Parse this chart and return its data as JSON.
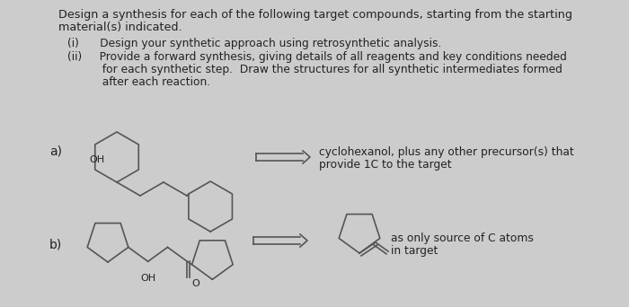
{
  "bg_color": "#cccccc",
  "line_color": "#555555",
  "text_color": "#222222",
  "title_line1": "Design a synthesis for each of the following target compounds, starting from the starting",
  "title_line2": "material(s) indicated.",
  "item_i": "(i)      Design your synthetic approach using retrosynthetic analysis.",
  "item_ii_1": "(ii)     Provide a forward synthesis, giving details of all reagents and key conditions needed",
  "item_ii_2": "          for each synthetic step.  Draw the structures for all synthetic intermediates formed",
  "item_ii_3": "          after each reaction.",
  "label_a": "a)",
  "label_b": "b)",
  "text_a_1": "cyclohexanol, plus any other precursor(s) that",
  "text_a_2": "provide 1C to the target",
  "text_b_1": "as only source of C atoms",
  "text_b_2": "in target",
  "font_size_title": 9.2,
  "font_size_body": 8.8,
  "font_size_label": 10.0,
  "font_size_struct": 8.0
}
